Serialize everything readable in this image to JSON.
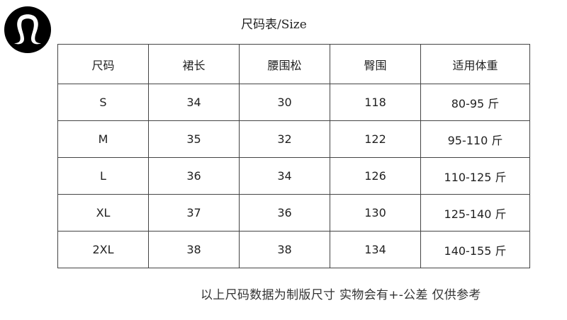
{
  "logo": {
    "brand": "lululemon",
    "icon": "lululemon-logo-icon"
  },
  "title": "尺码表/Size",
  "table": {
    "headers": [
      "尺码",
      "裙长",
      "腰围松",
      "臀围",
      "适用体重"
    ],
    "rows": [
      [
        "S",
        "34",
        "30",
        "118",
        "80-95 斤"
      ],
      [
        "M",
        "35",
        "32",
        "122",
        "95-110 斤"
      ],
      [
        "L",
        "36",
        "34",
        "126",
        "110-125 斤"
      ],
      [
        "XL",
        "37",
        "36",
        "130",
        "125-140 斤"
      ],
      [
        "2XL",
        "38",
        "38",
        "134",
        "140-155 斤"
      ]
    ]
  },
  "note": "以上尺码数据为制版尺寸 实物会有+-公差 仅供参考"
}
